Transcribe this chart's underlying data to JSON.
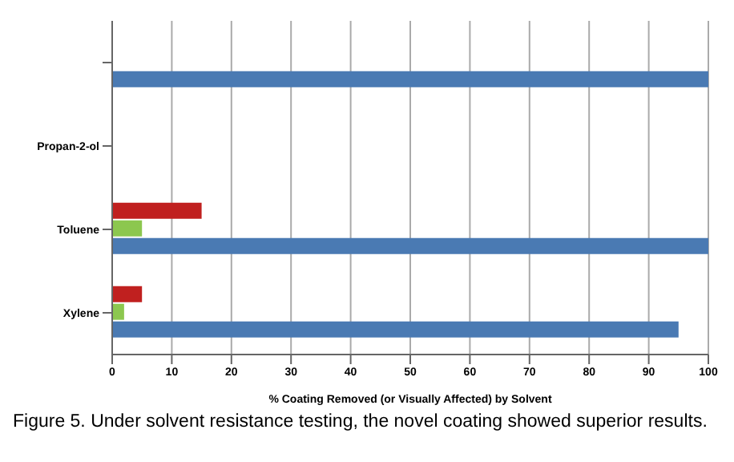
{
  "chart_data": {
    "type": "bar",
    "orientation": "horizontal",
    "categories": [
      null,
      "Propan-2-ol",
      "Toluene",
      "Xylene"
    ],
    "series": [
      {
        "color": "#c0201f",
        "values": [
          0,
          0,
          15,
          5
        ]
      },
      {
        "color": "#8cc74f",
        "values": [
          0,
          0,
          5,
          2
        ]
      },
      {
        "color": "#4a7ab3",
        "values": [
          100,
          0,
          100,
          95
        ]
      }
    ],
    "xlim": [
      0,
      100
    ],
    "xticks": [
      0,
      10,
      20,
      30,
      40,
      50,
      60,
      70,
      80,
      90,
      100
    ],
    "xlabel": "% Coating Removed (or Visually Affected) by Solvent",
    "grid": "x",
    "annotations": [
      "Figure 5. Under solvent resistance testing, the novel coating showed superior results."
    ]
  }
}
